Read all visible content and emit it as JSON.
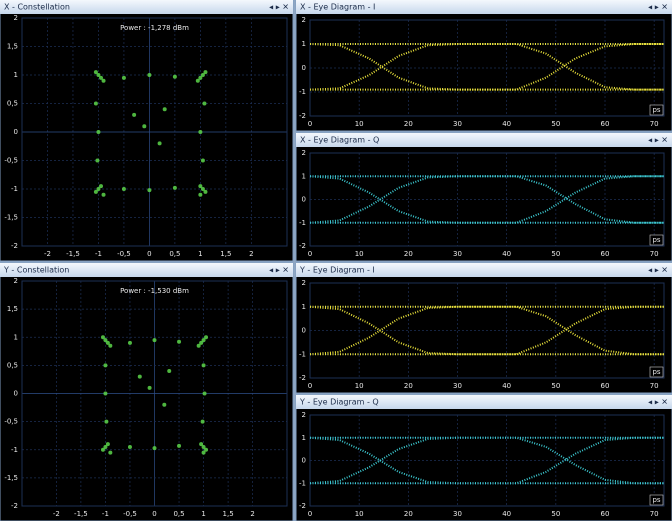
{
  "chart_data": [
    {
      "type": "scatter",
      "title": "X - Constellation",
      "annotation": "Power : -1,278 dBm",
      "color": "#5cd64a",
      "x": [
        -1,
        -0.95,
        -1.05,
        -0.9,
        1.05,
        1,
        1.1,
        0.95,
        -1,
        -0.95,
        -1.05,
        -0.9,
        1.05,
        1,
        1.1,
        1.0,
        -0.5,
        0,
        0.5,
        -0.5,
        0,
        0.5,
        -1.05,
        -1.0,
        -1.02,
        1.08,
        1.0,
        1.05,
        -0.3,
        0.2,
        0.3,
        -0.1
      ],
      "y": [
        1,
        0.95,
        1.05,
        0.9,
        1,
        0.95,
        1.05,
        0.9,
        -1,
        -0.95,
        -1.05,
        -1.1,
        -1,
        -0.95,
        -1.05,
        -1.1,
        0.95,
        1.0,
        0.97,
        -1.0,
        -1.02,
        -0.98,
        0.5,
        0,
        -0.5,
        0.5,
        0,
        -0.5,
        0.3,
        -0.2,
        0.4,
        0.1
      ],
      "xlim": [
        -2.5,
        2.7
      ],
      "ylim": [
        -2,
        2
      ],
      "xticks": [
        -2,
        {
          "value": -1.5,
          "label": "-1,5"
        },
        -1,
        {
          "value": -0.5,
          "label": "-0,5"
        },
        0,
        {
          "value": 0.5,
          "label": "0,5"
        },
        1,
        {
          "value": 1.5,
          "label": "1,5"
        },
        2
      ],
      "yticks": [
        -2,
        {
          "value": -1.5,
          "label": "-1,5"
        },
        -1,
        {
          "value": -0.5,
          "label": "-0,5"
        },
        0,
        {
          "value": 0.5,
          "label": "0,5"
        },
        1,
        {
          "value": 1.5,
          "label": "1,5"
        },
        2
      ]
    },
    {
      "type": "line",
      "title": "X - Eye Diagram - I",
      "x_unit": "ps",
      "color": "#e8e03a",
      "x": [
        0,
        6,
        12,
        18,
        24,
        30,
        36,
        42,
        48,
        54,
        60,
        66,
        72
      ],
      "series": [
        {
          "values": [
            1,
            1,
            1,
            1,
            1,
            1,
            1,
            1,
            1,
            1,
            1,
            1,
            1
          ]
        },
        {
          "values": [
            -0.9,
            -0.9,
            -0.9,
            -0.9,
            -0.9,
            -0.9,
            -0.9,
            -0.9,
            -0.9,
            -0.9,
            -0.9,
            -0.9,
            -0.9
          ]
        },
        {
          "values": [
            -0.9,
            -0.85,
            -0.3,
            0.5,
            0.95,
            1,
            1,
            1,
            0.6,
            -0.2,
            -0.8,
            -0.9,
            -0.9
          ]
        },
        {
          "values": [
            1,
            0.95,
            0.4,
            -0.4,
            -0.85,
            -0.9,
            -0.9,
            -0.9,
            -0.4,
            0.4,
            0.9,
            1,
            1
          ]
        }
      ],
      "xlim": [
        0,
        72
      ],
      "ylim": [
        -2,
        2
      ],
      "xticks": [
        0,
        10,
        20,
        30,
        40,
        50,
        60,
        70
      ],
      "yticks": [
        -2,
        -1,
        0,
        1,
        2
      ]
    },
    {
      "type": "line",
      "title": "X - Eye Diagram - Q",
      "x_unit": "ps",
      "color": "#3cc8d0",
      "x": [
        0,
        6,
        12,
        18,
        24,
        30,
        36,
        42,
        48,
        54,
        60,
        66,
        72
      ],
      "series": [
        {
          "values": [
            1,
            1,
            1,
            1,
            1,
            1,
            1,
            1,
            1,
            1,
            1,
            1,
            1
          ]
        },
        {
          "values": [
            -1,
            -1,
            -1,
            -1,
            -1,
            -1,
            -1,
            -1,
            -1,
            -1,
            -1,
            -1,
            -1
          ]
        },
        {
          "values": [
            -1,
            -0.9,
            -0.3,
            0.5,
            0.95,
            1,
            1,
            1,
            0.6,
            -0.2,
            -0.85,
            -1,
            -1
          ]
        },
        {
          "values": [
            1,
            0.9,
            0.3,
            -0.5,
            -0.95,
            -1,
            -1,
            -1,
            -0.5,
            0.3,
            0.9,
            1,
            1
          ]
        }
      ],
      "xlim": [
        0,
        72
      ],
      "ylim": [
        -2,
        2
      ],
      "xticks": [
        0,
        10,
        20,
        30,
        40,
        50,
        60,
        70
      ],
      "yticks": [
        -2,
        -1,
        0,
        1,
        2
      ]
    },
    {
      "type": "scatter",
      "title": "Y - Constellation",
      "annotation": "Power : -1,530 dBm",
      "color": "#5cd64a",
      "x": [
        -1,
        -0.95,
        -1.05,
        -0.9,
        1,
        0.95,
        1.05,
        0.9,
        -1,
        -0.95,
        -1.05,
        -0.9,
        1,
        0.95,
        1.05,
        1.0,
        -0.5,
        0,
        0.5,
        -0.5,
        0,
        0.5,
        -1.0,
        -1.0,
        -0.98,
        1.0,
        1.02,
        0.98,
        -0.3,
        0.2,
        0.3,
        -0.1
      ],
      "y": [
        0.95,
        0.9,
        1.0,
        0.85,
        0.95,
        0.9,
        1.0,
        0.85,
        -0.95,
        -0.9,
        -1.0,
        -1.05,
        -0.95,
        -0.9,
        -1.0,
        -1.05,
        0.9,
        0.95,
        0.92,
        -0.95,
        -0.97,
        -0.93,
        0.5,
        0,
        -0.5,
        0.5,
        0,
        -0.5,
        0.3,
        -0.2,
        0.4,
        0.1
      ],
      "xlim": [
        -2.7,
        2.7
      ],
      "ylim": [
        -2,
        2
      ],
      "xticks": [
        -2,
        {
          "value": -1.5,
          "label": "-1,5"
        },
        -1,
        {
          "value": -0.5,
          "label": "-0,5"
        },
        0,
        {
          "value": 0.5,
          "label": "0,5"
        },
        1,
        {
          "value": 1.5,
          "label": "1,5"
        },
        2
      ],
      "yticks": [
        -2,
        {
          "value": -1.5,
          "label": "-1,5"
        },
        -1,
        {
          "value": -0.5,
          "label": "-0,5"
        },
        0,
        {
          "value": 0.5,
          "label": "0,5"
        },
        1,
        {
          "value": 1.5,
          "label": "1,5"
        },
        2
      ]
    },
    {
      "type": "line",
      "title": "Y - Eye Diagram - I",
      "x_unit": "ps",
      "color": "#e8e03a",
      "x": [
        0,
        6,
        12,
        18,
        24,
        30,
        36,
        42,
        48,
        54,
        60,
        66,
        72
      ],
      "series": [
        {
          "values": [
            1,
            1,
            1,
            1,
            1,
            1,
            1,
            1,
            1,
            1,
            1,
            1,
            1
          ]
        },
        {
          "values": [
            -1,
            -1,
            -1,
            -1,
            -1,
            -1,
            -1,
            -1,
            -1,
            -1,
            -1,
            -1,
            -1
          ]
        },
        {
          "values": [
            -1,
            -0.9,
            -0.3,
            0.5,
            0.95,
            1,
            1,
            1,
            0.6,
            -0.2,
            -0.85,
            -1,
            -1
          ]
        },
        {
          "values": [
            1,
            0.9,
            0.3,
            -0.5,
            -0.95,
            -1,
            -1,
            -1,
            -0.5,
            0.3,
            0.9,
            1,
            1
          ]
        }
      ],
      "xlim": [
        0,
        72
      ],
      "ylim": [
        -2,
        2
      ],
      "xticks": [
        0,
        10,
        20,
        30,
        40,
        50,
        60,
        70
      ],
      "yticks": [
        -2,
        -1,
        0,
        1,
        2
      ]
    },
    {
      "type": "line",
      "title": "Y - Eye Diagram - Q",
      "x_unit": "ps",
      "color": "#3cc8d0",
      "x": [
        0,
        6,
        12,
        18,
        24,
        30,
        36,
        42,
        48,
        54,
        60,
        66,
        72
      ],
      "series": [
        {
          "values": [
            1,
            1,
            1,
            1,
            1,
            1,
            1,
            1,
            1,
            1,
            1,
            1,
            1
          ]
        },
        {
          "values": [
            -1,
            -1,
            -1,
            -1,
            -1,
            -1,
            -1,
            -1,
            -1,
            -1,
            -1,
            -1,
            -1
          ]
        },
        {
          "values": [
            -1,
            -0.9,
            -0.3,
            0.5,
            0.95,
            1,
            1,
            1,
            0.6,
            -0.2,
            -0.85,
            -1,
            -1
          ]
        },
        {
          "values": [
            1,
            0.9,
            0.3,
            -0.5,
            -0.95,
            -1,
            -1,
            -1,
            -0.5,
            0.3,
            0.9,
            1,
            1
          ]
        }
      ],
      "xlim": [
        0,
        72
      ],
      "ylim": [
        -2,
        2
      ],
      "xticks": [
        0,
        10,
        20,
        30,
        40,
        50,
        60,
        70
      ],
      "yticks": [
        -2,
        -1,
        0,
        1,
        2
      ]
    }
  ]
}
